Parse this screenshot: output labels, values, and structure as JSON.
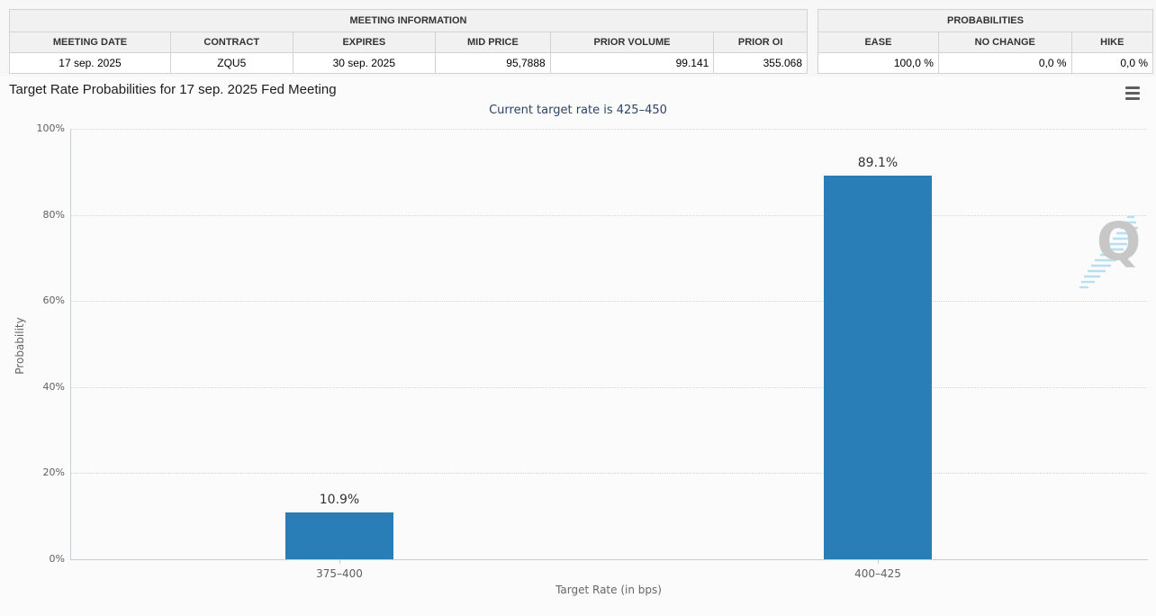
{
  "meeting_table": {
    "title": "MEETING INFORMATION",
    "columns": [
      "MEETING DATE",
      "CONTRACT",
      "EXPIRES",
      "MID PRICE",
      "PRIOR VOLUME",
      "PRIOR OI"
    ],
    "values": [
      "17 sep. 2025",
      "ZQU5",
      "30 sep. 2025",
      "95,7888",
      "99.141",
      "355.068"
    ]
  },
  "probabilities_table": {
    "title": "PROBABILITIES",
    "columns": [
      "EASE",
      "NO CHANGE",
      "HIKE"
    ],
    "values": [
      "100,0 %",
      "0,0 %",
      "0,0 %"
    ]
  },
  "chart_data": {
    "type": "bar",
    "title": "Target Rate Probabilities for 17 sep. 2025 Fed Meeting",
    "subtitle": "Current target rate is 425–450",
    "categories": [
      "375–400",
      "400–425"
    ],
    "values": [
      10.9,
      89.1
    ],
    "data_labels": [
      "10.9%",
      "89.1%"
    ],
    "xlabel": "Target Rate (in bps)",
    "ylabel": "Probability",
    "ylim": [
      0,
      100
    ],
    "yticks": [
      "0%",
      "20%",
      "40%",
      "60%",
      "80%",
      "100%"
    ],
    "grid": "horizontal-dotted",
    "legend": "none",
    "bar_color": "#2a7eb8"
  },
  "icons": {
    "export_menu": "hamburger-icon",
    "watermark_letter": "Q"
  }
}
